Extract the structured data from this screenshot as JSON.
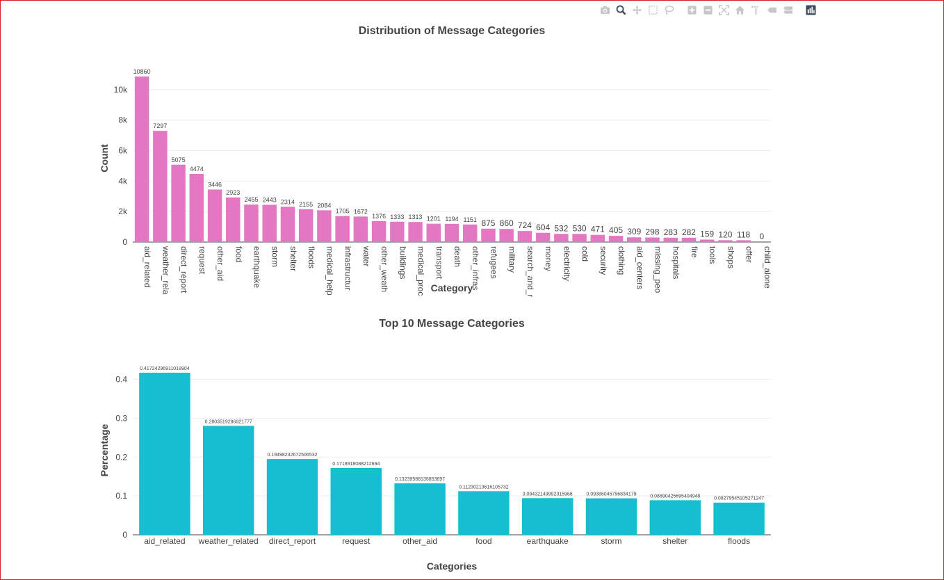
{
  "modebar": {
    "buttons": [
      {
        "name": "camera-icon",
        "icon": "camera"
      },
      {
        "name": "zoom-icon",
        "icon": "zoom",
        "dark": true
      },
      {
        "name": "pan-icon",
        "icon": "pan"
      },
      {
        "name": "box-select-icon",
        "icon": "box"
      },
      {
        "name": "lasso-select-icon",
        "icon": "lasso"
      },
      {
        "name": "zoom-in-icon",
        "icon": "plus"
      },
      {
        "name": "zoom-out-icon",
        "icon": "minus"
      },
      {
        "name": "autoscale-icon",
        "icon": "autoscale"
      },
      {
        "name": "reset-axes-icon",
        "icon": "home"
      },
      {
        "name": "spike-lines-icon",
        "icon": "spike"
      },
      {
        "name": "hover-closest-icon",
        "icon": "tag"
      },
      {
        "name": "hover-compare-icon",
        "icon": "tags"
      },
      {
        "name": "plotly-logo-icon",
        "icon": "logo",
        "dark": true
      }
    ]
  },
  "chart_data": [
    {
      "type": "bar",
      "title": "Distribution of Message Categories",
      "xlabel": "Category",
      "ylabel": "Count",
      "ylim": [
        0,
        11000
      ],
      "yticks": [
        0,
        2000,
        4000,
        6000,
        8000,
        10000
      ],
      "ytick_labels": [
        "0",
        "2k",
        "4k",
        "6k",
        "8k",
        "10k"
      ],
      "color": "#e377c2",
      "grid": true,
      "categories": [
        "aid_related",
        "weather_related",
        "direct_report",
        "request",
        "other_aid",
        "food",
        "earthquake",
        "storm",
        "shelter",
        "floods",
        "medical_help",
        "infrastructure_related",
        "water",
        "other_weather",
        "buildings",
        "medical_products",
        "transport",
        "death",
        "other_infrastructure",
        "refugees",
        "military",
        "search_and_rescue",
        "money",
        "electricity",
        "cold",
        "security",
        "clothing",
        "aid_centers",
        "missing_people",
        "hospitals",
        "fire",
        "tools",
        "shops",
        "offer",
        "child_alone"
      ],
      "tick_labels": [
        "aid_related",
        "weather_rela",
        "direct_report",
        "request",
        "other_aid",
        "food",
        "earthquake",
        "storm",
        "shelter",
        "floods",
        "medical_help",
        "infrastructur",
        "water",
        "other_weath",
        "buildings",
        "medical_proc",
        "transport",
        "death",
        "other_infras",
        "refugees",
        "military",
        "search_and_r",
        "money",
        "electricity",
        "cold",
        "security",
        "clothing",
        "aid_centers",
        "missing_peo",
        "hospitals",
        "fire",
        "tools",
        "shops",
        "offer",
        "child_alone"
      ],
      "values": [
        10860,
        7297,
        5075,
        4474,
        3446,
        2923,
        2455,
        2443,
        2314,
        2155,
        2084,
        1705,
        1672,
        1376,
        1333,
        1313,
        1201,
        1194,
        1151,
        875,
        860,
        724,
        604,
        532,
        530,
        471,
        405,
        309,
        298,
        283,
        282,
        159,
        120,
        118,
        0
      ],
      "value_labels": [
        "10860",
        "7297",
        "5075",
        "4474",
        "3446",
        "2923",
        "2455",
        "2443",
        "2314",
        "2155",
        "2084",
        "1705",
        "1672",
        "1376",
        "1333",
        "1313",
        "1201",
        "1194",
        "1151",
        "875",
        "860",
        "724",
        "604",
        "532",
        "530",
        "471",
        "405",
        "309",
        "298",
        "283",
        "282",
        "159",
        "120",
        "118",
        "0"
      ]
    },
    {
      "type": "bar",
      "title": "Top 10 Message Categories",
      "xlabel": "Categories",
      "ylabel": "Percentage",
      "ylim": [
        0,
        0.435
      ],
      "yticks": [
        0,
        0.1,
        0.2,
        0.3,
        0.4
      ],
      "ytick_labels": [
        "0",
        "0.1",
        "0.2",
        "0.3",
        "0.4"
      ],
      "color": "#17becf",
      "grid": true,
      "categories": [
        "aid_related",
        "weather_related",
        "direct_report",
        "request",
        "other_aid",
        "food",
        "earthquake",
        "storm",
        "shelter",
        "floods"
      ],
      "tick_labels": [
        "aid_related",
        "weather_related",
        "direct_report",
        "request",
        "other_aid",
        "food",
        "earthquake",
        "storm",
        "shelter",
        "floods"
      ],
      "values": [
        0.41724296911018904,
        0.2803519286921777,
        0.19498232672506532,
        0.1718918088212694,
        0.13239588135853697,
        0.11230213616105732,
        0.09432149992315968,
        0.09386045796834179,
        0.08890425695404948,
        0.08279545105271247
      ],
      "value_labels": [
        "0.41724296911018904",
        "0.2803519286921777",
        "0.19498232672506532",
        "0.1718918088212694",
        "0.13239588135853697",
        "0.11230213616105732",
        "0.09432149992315968",
        "0.09386045796834179",
        "0.08890425695404948",
        "0.08279545105271247"
      ]
    }
  ]
}
